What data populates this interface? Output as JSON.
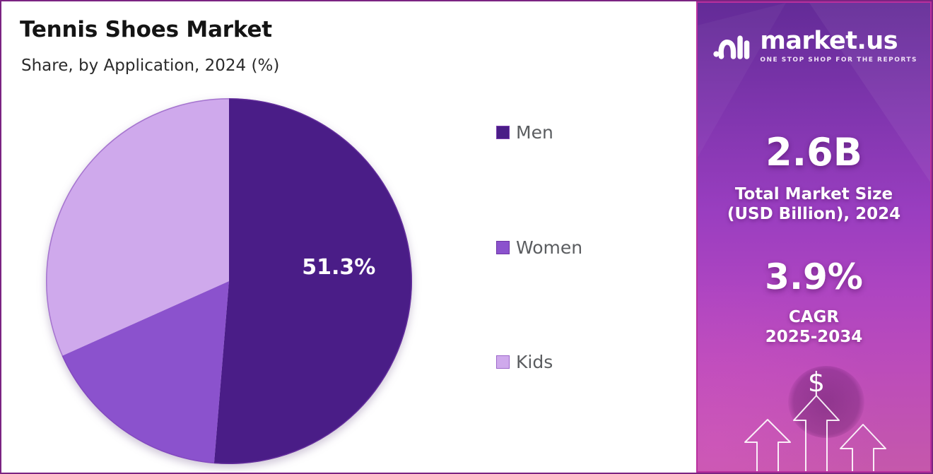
{
  "header": {
    "title": "Tennis Shoes Market",
    "subtitle": "Share, by Application, 2024 (%)"
  },
  "chart_data": {
    "type": "pie",
    "title": "Tennis Shoes Market",
    "subtitle": "Share, by Application, 2024 (%)",
    "unit": "%",
    "year": "2024",
    "legend_position": "right",
    "start_angle_deg": 0,
    "direction": "clockwise",
    "series": [
      {
        "name": "Men",
        "value": 51.3,
        "label": "51.3%",
        "color": "#4a1d87",
        "swatch_border": "#7b3eb0"
      },
      {
        "name": "Women",
        "value": 17.0,
        "label": "",
        "color": "#8b52cd",
        "swatch_border": "#6e35a5"
      },
      {
        "name": "Kids",
        "value": 31.7,
        "label": "",
        "color": "#cfa9ec",
        "swatch_border": "#9c67ca"
      }
    ]
  },
  "sidebar": {
    "brand": {
      "name": "market.us",
      "tagline": "ONE STOP SHOP FOR THE REPORTS"
    },
    "stats": [
      {
        "value": "2.6B",
        "caption_lines": [
          "Total Market Size",
          "(USD Billion), 2024"
        ]
      },
      {
        "value": "3.9%",
        "caption_lines": [
          "CAGR",
          "2025-2034"
        ]
      }
    ],
    "dollar_icon": "$"
  },
  "colors": {
    "frame_border": "#7b2482",
    "sidebar_border": "#b92f9e",
    "legend_text": "#5b5d60",
    "slice_label_text": "#ffffff"
  }
}
